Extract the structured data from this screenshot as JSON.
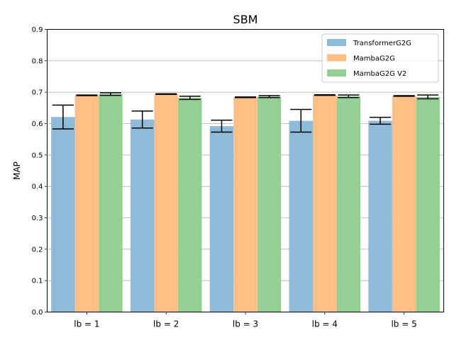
{
  "chart_data": {
    "type": "bar",
    "title": "SBM",
    "xlabel": "",
    "ylabel": "MAP",
    "ylim": [
      0,
      0.9
    ],
    "yticks": [
      "0.0",
      "0.1",
      "0.2",
      "0.3",
      "0.4",
      "0.5",
      "0.6",
      "0.7",
      "0.8",
      "0.9"
    ],
    "grid": "horizontal",
    "legend_position": "top-right",
    "categories": [
      "lb = 1",
      "lb = 2",
      "lb = 3",
      "lb = 4",
      "lb = 5"
    ],
    "series": [
      {
        "name": "TransformerG2G",
        "color": "#8fbbd9",
        "values": [
          0.621,
          0.613,
          0.592,
          0.609,
          0.609
        ],
        "errors": [
          0.038,
          0.027,
          0.019,
          0.036,
          0.011
        ]
      },
      {
        "name": "MambaG2G",
        "color": "#ffbf86",
        "values": [
          0.69,
          0.694,
          0.684,
          0.691,
          0.688
        ],
        "errors": [
          0.001,
          0.001,
          0.001,
          0.001,
          0.001
        ]
      },
      {
        "name": "MambaG2G V2",
        "color": "#95cf95",
        "values": [
          0.694,
          0.682,
          0.686,
          0.687,
          0.685
        ],
        "errors": [
          0.004,
          0.005,
          0.003,
          0.004,
          0.006
        ]
      }
    ]
  }
}
